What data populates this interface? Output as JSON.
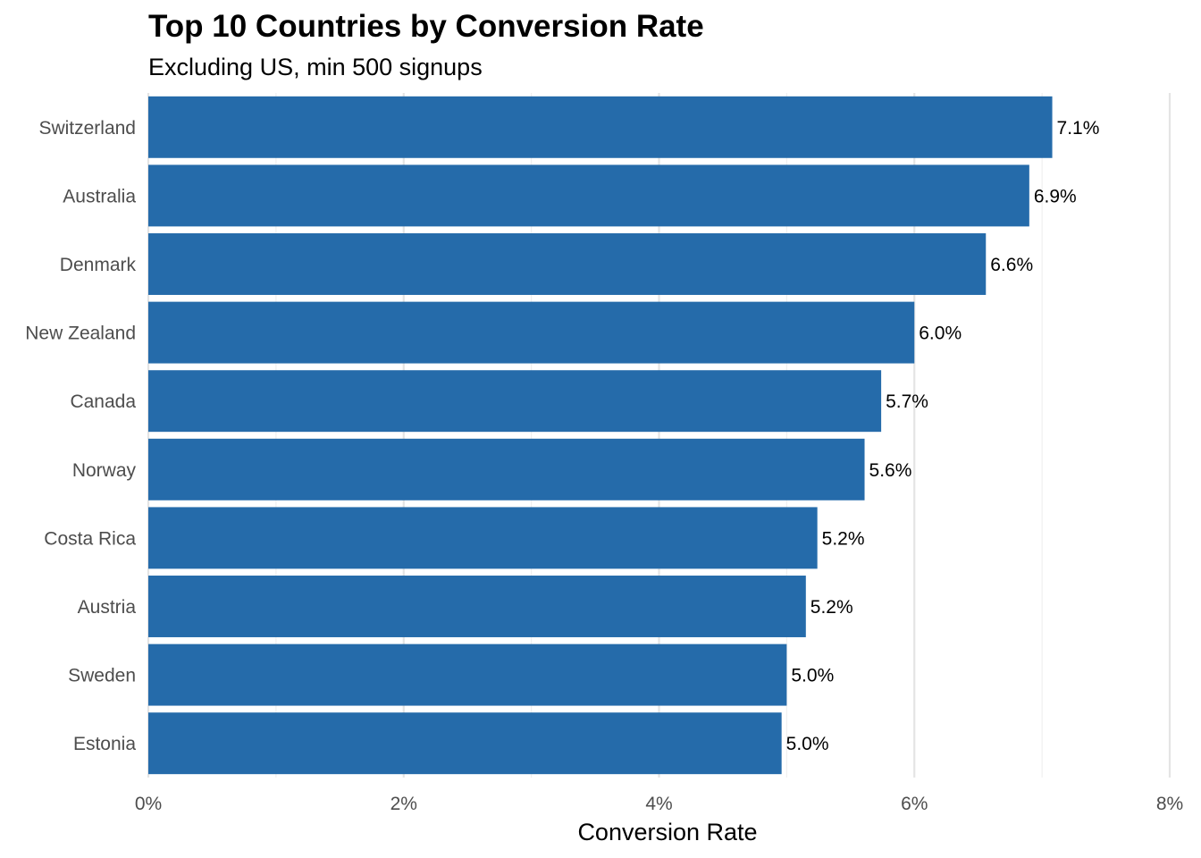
{
  "chart_data": {
    "type": "bar",
    "orientation": "horizontal",
    "title": "Top 10 Countries by Conversion Rate",
    "subtitle": "Excluding US, min 500 signups",
    "xlabel": "Conversion Rate",
    "ylabel": "",
    "xlim": [
      0,
      8
    ],
    "xticks": [
      0,
      2,
      4,
      6,
      8
    ],
    "xtick_labels": [
      "0%",
      "2%",
      "4%",
      "6%",
      "8%"
    ],
    "grid": true,
    "legend": "none",
    "bar_color": "#256baa",
    "categories": [
      "Switzerland",
      "Australia",
      "Denmark",
      "New Zealand",
      "Canada",
      "Norway",
      "Costa Rica",
      "Austria",
      "Sweden",
      "Estonia"
    ],
    "values": [
      7.08,
      6.9,
      6.56,
      6.0,
      5.74,
      5.61,
      5.24,
      5.15,
      5.0,
      4.96
    ],
    "value_labels": [
      "7.1%",
      "6.9%",
      "6.6%",
      "6.0%",
      "5.7%",
      "5.6%",
      "5.2%",
      "5.2%",
      "5.0%",
      "5.0%"
    ]
  }
}
